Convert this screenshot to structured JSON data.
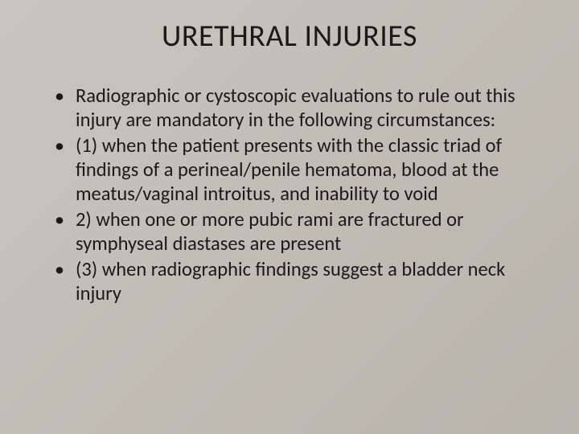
{
  "slide": {
    "title": "URETHRAL INJURIES",
    "bullets": [
      "Radiographic or cystoscopic evaluations to rule out this injury are mandatory in the following circumstances:",
      " (1) when the patient presents with the classic triad of findings of a perineal/penile hematoma, blood at the meatus/vaginal introitus, and inability to void",
      "2) when one or more pubic rami are fractured or symphyseal diastases are present",
      " (3) when radiographic findings suggest a bladder neck injury"
    ],
    "background_gradient": [
      "#c8c6c0",
      "#c0bdb5",
      "#b8b5ad"
    ],
    "title_fontsize": 38,
    "body_fontsize": 24.5,
    "text_color": "#1a1a1a",
    "font_family": "Calibri"
  }
}
